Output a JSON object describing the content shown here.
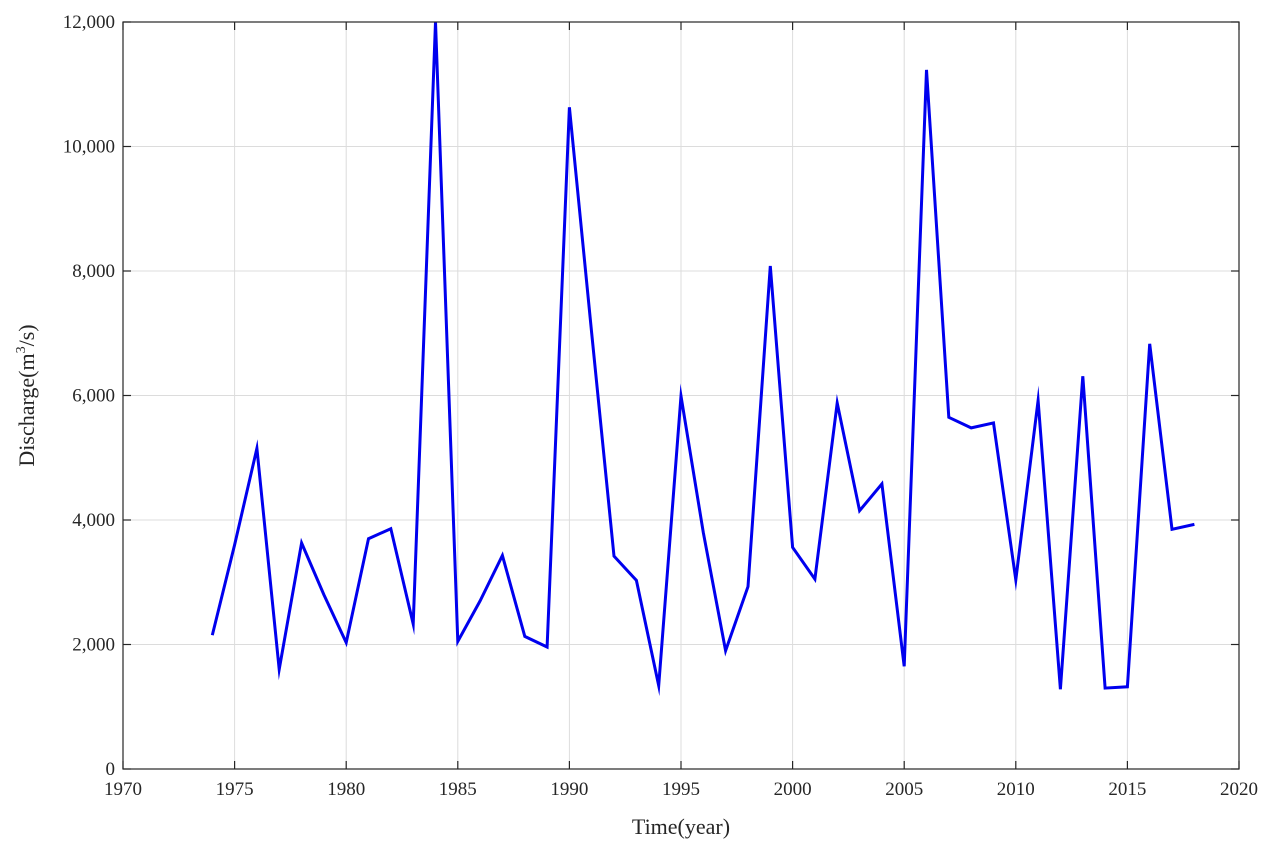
{
  "chart_data": {
    "type": "line",
    "xlabel": "Time(year)",
    "ylabel": {
      "prefix": "Discharge(m",
      "sup": "3",
      "suffix": "/s)"
    },
    "xlim": [
      1970,
      2020
    ],
    "ylim": [
      0,
      12000
    ],
    "xticks": [
      1970,
      1975,
      1980,
      1985,
      1990,
      1995,
      2000,
      2005,
      2010,
      2015,
      2020
    ],
    "yticks": [
      0,
      2000,
      4000,
      6000,
      8000,
      10000,
      12000
    ],
    "ytick_labels": [
      "0",
      "2,000",
      "4,000",
      "6,000",
      "8,000",
      "10,000",
      "12,000"
    ],
    "grid": true,
    "line_color": "#0000ee",
    "series": [
      {
        "x": [
          1974,
          1975,
          1976,
          1977,
          1978,
          1979,
          1980,
          1981,
          1982,
          1983,
          1984,
          1985,
          1986,
          1987,
          1988,
          1989,
          1990,
          1991,
          1992,
          1993,
          1994,
          1995,
          1996,
          1997,
          1998,
          1999,
          2000,
          2001,
          2002,
          2003,
          2004,
          2005,
          2006,
          2007,
          2008,
          2009,
          2010,
          2011,
          2012,
          2013,
          2014,
          2015,
          2016,
          2017,
          2018
        ],
        "y": [
          2150,
          3600,
          5150,
          1600,
          3630,
          2800,
          2030,
          3700,
          3860,
          2330,
          12000,
          2050,
          2700,
          3430,
          2130,
          1960,
          10630,
          7000,
          3420,
          3030,
          1340,
          5990,
          3800,
          1900,
          2930,
          8080,
          3560,
          3050,
          5880,
          4150,
          4580,
          1650,
          11230,
          5650,
          5480,
          5560,
          3040,
          5920,
          1280,
          6310,
          1300,
          1320,
          6830,
          3850,
          3930
        ]
      }
    ]
  }
}
